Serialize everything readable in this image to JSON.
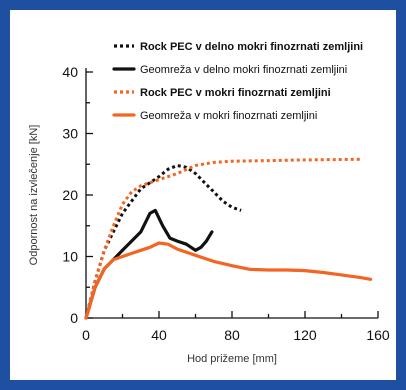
{
  "chart_data": {
    "type": "line",
    "title": "",
    "xlabel": "Hod prižeme [mm]",
    "ylabel": "Odpornost na izvlečenje [kN]",
    "xlim": [
      0,
      160
    ],
    "ylim": [
      0,
      40
    ],
    "xticks": [
      0,
      40,
      80,
      120,
      160
    ],
    "yticks": [
      0,
      10,
      20,
      30,
      40
    ],
    "grid": false,
    "legend_position": "top-right",
    "series": [
      {
        "name": "Rock PEC v delno mokri finozrnati zemljini",
        "color": "#111111",
        "style": "dotted",
        "bold": true,
        "x": [
          0,
          5,
          10,
          20,
          30,
          40,
          45,
          50,
          55,
          60,
          65,
          70,
          75,
          80,
          85
        ],
        "y": [
          0,
          6,
          11,
          17,
          21,
          23,
          24.2,
          24.8,
          24.5,
          23.5,
          22,
          20.5,
          19,
          18,
          17.5
        ]
      },
      {
        "name": "Geomreža v delno mokri finozrnati zemljini",
        "color": "#111111",
        "style": "solid",
        "bold": false,
        "x": [
          0,
          5,
          10,
          15,
          20,
          25,
          30,
          35,
          38,
          42,
          46,
          50,
          55,
          60,
          63,
          66,
          69
        ],
        "y": [
          0,
          5,
          8,
          9.5,
          11,
          12.5,
          14,
          17,
          17.5,
          15,
          13,
          12.5,
          12,
          11,
          11.5,
          12.5,
          14
        ]
      },
      {
        "name": "Rock PEC v mokri finozrnati zemljini",
        "color": "#f26522",
        "style": "dotted",
        "bold": true,
        "x": [
          0,
          5,
          10,
          15,
          20,
          25,
          30,
          35,
          40,
          50,
          60,
          70,
          80,
          100,
          120,
          150
        ],
        "y": [
          0,
          6,
          11,
          15,
          18.5,
          20.5,
          21.5,
          22,
          22.5,
          23.5,
          24.8,
          25.3,
          25.5,
          25.6,
          25.7,
          25.8
        ]
      },
      {
        "name": "Geomreža v mokri finozrnati zemljini",
        "color": "#f26522",
        "style": "solid",
        "bold": false,
        "x": [
          0,
          5,
          10,
          15,
          20,
          25,
          30,
          35,
          40,
          45,
          50,
          60,
          70,
          80,
          90,
          100,
          110,
          120,
          130,
          140,
          150,
          156
        ],
        "y": [
          0,
          5,
          8,
          9.5,
          10,
          10.5,
          11,
          11.5,
          12.2,
          12,
          11.2,
          10.2,
          9.2,
          8.5,
          7.9,
          7.8,
          7.8,
          7.7,
          7.4,
          7,
          6.6,
          6.3
        ]
      }
    ]
  }
}
